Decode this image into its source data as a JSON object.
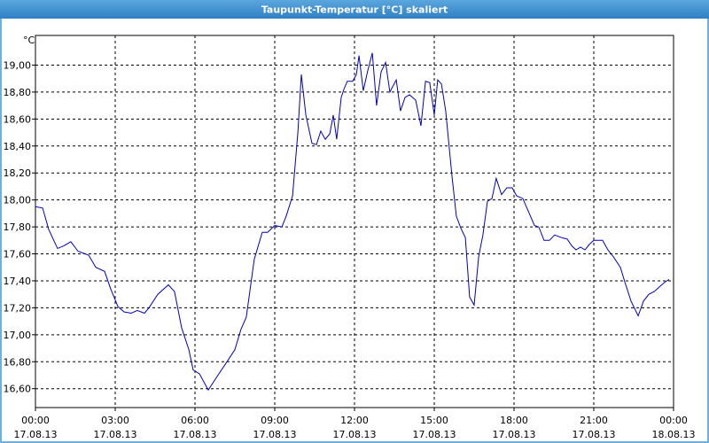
{
  "window_title": "Taupunkt-Temperatur [°C] skaliert",
  "chart_data": {
    "type": "line",
    "y_unit": "°C",
    "xlim": [
      0,
      24
    ],
    "ylim": [
      16.46,
      19.22
    ],
    "grid": true,
    "xticks": [
      {
        "value": 0,
        "label": "00:00",
        "date": "17.08.13"
      },
      {
        "value": 3,
        "label": "03:00",
        "date": "17.08.13"
      },
      {
        "value": 6,
        "label": "06:00",
        "date": "17.08.13"
      },
      {
        "value": 9,
        "label": "09:00",
        "date": "17.08.13"
      },
      {
        "value": 12,
        "label": "12:00",
        "date": "17.08.13"
      },
      {
        "value": 15,
        "label": "15:00",
        "date": "17.08.13"
      },
      {
        "value": 18,
        "label": "18:00",
        "date": "17.08.13"
      },
      {
        "value": 21,
        "label": "21:00",
        "date": "17.08.13"
      },
      {
        "value": 24,
        "label": "00:00",
        "date": "18.08.13"
      }
    ],
    "yticks": [
      {
        "value": 16.6,
        "label": "16,60"
      },
      {
        "value": 16.8,
        "label": "16,80"
      },
      {
        "value": 17.0,
        "label": "17,00"
      },
      {
        "value": 17.2,
        "label": "17,20"
      },
      {
        "value": 17.4,
        "label": "17,40"
      },
      {
        "value": 17.6,
        "label": "17,60"
      },
      {
        "value": 17.8,
        "label": "17,80"
      },
      {
        "value": 18.0,
        "label": "18,00"
      },
      {
        "value": 18.2,
        "label": "18,20"
      },
      {
        "value": 18.4,
        "label": "18,40"
      },
      {
        "value": 18.6,
        "label": "18,60"
      },
      {
        "value": 18.8,
        "label": "18,80"
      },
      {
        "value": 19.0,
        "label": "19,00"
      }
    ],
    "series": [
      {
        "color": "#0000c0",
        "x": [
          0,
          0.27,
          0.5,
          0.83,
          1.07,
          1.33,
          1.6,
          2.0,
          2.27,
          2.6,
          2.83,
          3.1,
          3.33,
          3.6,
          3.83,
          4.1,
          4.27,
          4.6,
          5.0,
          5.23,
          5.5,
          5.77,
          5.93,
          6.17,
          6.5,
          6.83,
          7.17,
          7.5,
          7.73,
          7.93,
          8.23,
          8.53,
          8.73,
          9.0,
          9.27,
          9.43,
          9.67,
          9.87,
          10.0,
          10.17,
          10.4,
          10.57,
          10.73,
          10.9,
          11.07,
          11.2,
          11.33,
          11.5,
          11.6,
          11.73,
          11.93,
          12.07,
          12.17,
          12.33,
          12.5,
          12.67,
          12.83,
          13.0,
          13.17,
          13.33,
          13.57,
          13.73,
          13.9,
          14.07,
          14.3,
          14.5,
          14.67,
          14.83,
          15.0,
          15.13,
          15.27,
          15.43,
          15.67,
          15.83,
          16.0,
          16.17,
          16.33,
          16.5,
          16.67,
          16.83,
          17.0,
          17.17,
          17.33,
          17.53,
          17.73,
          17.93,
          18.1,
          18.33,
          18.53,
          18.77,
          18.93,
          19.13,
          19.33,
          19.53,
          19.8,
          20.0,
          20.17,
          20.33,
          20.5,
          20.67,
          20.83,
          21.0,
          21.2,
          21.33,
          21.53,
          21.73,
          22.0,
          22.17,
          22.4,
          22.67,
          22.87,
          23.07,
          23.27,
          23.5,
          23.67,
          23.83
        ],
        "values": [
          17.95,
          17.94,
          17.78,
          17.64,
          17.66,
          17.69,
          17.62,
          17.59,
          17.5,
          17.47,
          17.34,
          17.21,
          17.17,
          17.16,
          17.18,
          17.16,
          17.2,
          17.3,
          17.37,
          17.32,
          17.05,
          16.89,
          16.74,
          16.71,
          16.59,
          16.69,
          16.79,
          16.89,
          17.04,
          17.13,
          17.56,
          17.76,
          17.76,
          17.81,
          17.8,
          17.88,
          18.03,
          18.5,
          18.93,
          18.63,
          18.42,
          18.41,
          18.51,
          18.45,
          18.49,
          18.63,
          18.45,
          18.76,
          18.82,
          18.88,
          18.88,
          18.93,
          19.07,
          18.81,
          18.96,
          19.09,
          18.7,
          18.95,
          19.02,
          18.8,
          18.89,
          18.66,
          18.76,
          18.78,
          18.74,
          18.55,
          18.88,
          18.87,
          18.63,
          18.89,
          18.86,
          18.66,
          18.17,
          17.88,
          17.79,
          17.72,
          17.28,
          17.22,
          17.58,
          17.74,
          17.99,
          18.01,
          18.16,
          18.04,
          18.09,
          18.09,
          18.03,
          18.01,
          17.92,
          17.81,
          17.8,
          17.7,
          17.7,
          17.74,
          17.72,
          17.71,
          17.66,
          17.63,
          17.65,
          17.63,
          17.67,
          17.7,
          17.7,
          17.7,
          17.63,
          17.58,
          17.5,
          17.39,
          17.25,
          17.14,
          17.25,
          17.3,
          17.32,
          17.36,
          17.39,
          17.41
        ]
      }
    ]
  }
}
